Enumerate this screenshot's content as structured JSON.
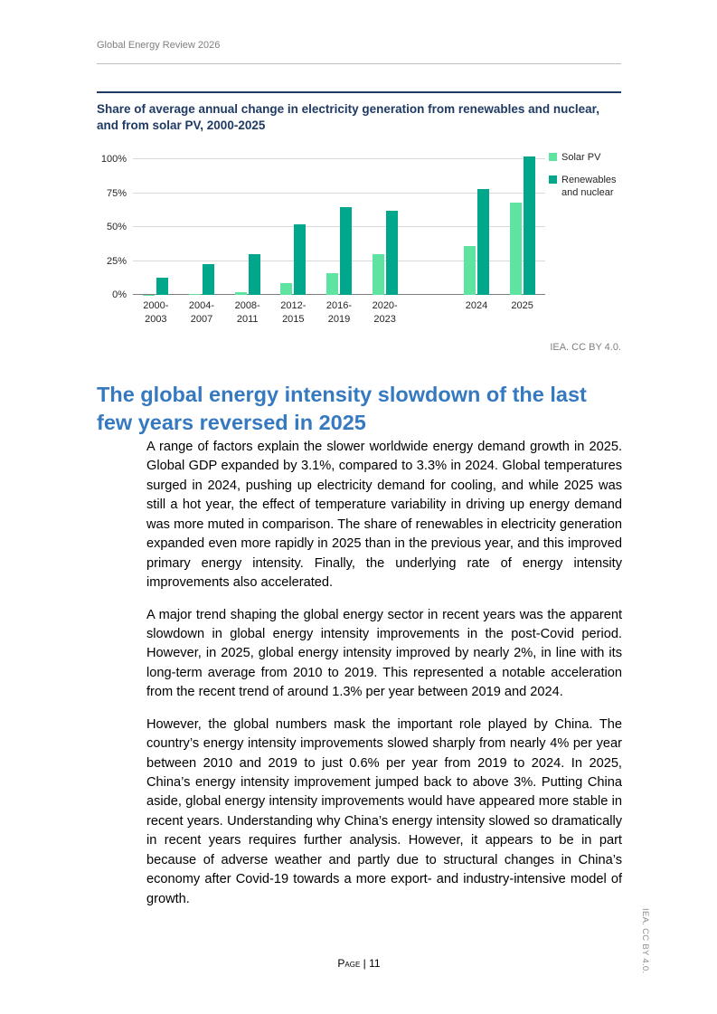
{
  "page": {
    "header": "Global Energy Review 2026",
    "footer_label": "Page | 11",
    "side_note": "IEA. CC BY 4.0."
  },
  "figure": {
    "title": "Share of average annual change in electricity generation from renewables and nuclear, and from solar PV, 2000-2025",
    "source": "IEA. CC BY 4.0."
  },
  "chart_data": {
    "type": "bar",
    "categories": [
      "2000-2003",
      "2004-2007",
      "2008-2011",
      "2012-2015",
      "2016-2019",
      "2020-2023",
      "2024",
      "2025"
    ],
    "series": [
      {
        "name": "Solar PV",
        "color": "#5fe3a1",
        "values": [
          0.5,
          1,
          2,
          9,
          16,
          30,
          36,
          68
        ]
      },
      {
        "name": "Renewables and nuclear",
        "color": "#00a78b",
        "values": [
          13,
          23,
          30,
          52,
          65,
          62,
          78,
          102
        ]
      }
    ],
    "yticks": [
      0,
      25,
      50,
      75,
      100
    ],
    "ytick_suffix": "%",
    "ylim": [
      0,
      105
    ],
    "grid": true,
    "legend_position": "right",
    "x_slots": [
      0,
      1,
      2,
      3,
      4,
      5,
      7,
      8
    ],
    "n_slots": 9
  },
  "section": {
    "heading": "The global energy intensity slowdown of the last few years reversed in 2025",
    "paragraphs": [
      "A range of factors explain the slower worldwide energy demand growth in 2025. Global GDP expanded by 3.1%, compared to 3.3% in 2024. Global temperatures surged in 2024, pushing up electricity demand for cooling, and while 2025 was still a hot year, the effect of temperature variability in driving up energy demand was more muted in comparison. The share of renewables in electricity generation expanded even more rapidly in 2025 than in the previous year, and this improved primary energy intensity. Finally, the underlying rate of energy intensity improvements also accelerated.",
      "A major trend shaping the global energy sector in recent years was the apparent slowdown in global energy intensity improvements in the post-Covid period. However, in 2025, global energy intensity improved by nearly 2%, in line with its long-term average from 2010 to 2019. This represented a notable acceleration from the recent trend of around 1.3% per year between 2019 and 2024.",
      "However, the global numbers mask the important role played by China. The country’s energy intensity improvements slowed sharply from nearly 4% per year between 2010 and 2019 to just 0.6% per year from 2019 to 2024. In 2025, China’s energy intensity improvement jumped back to above 3%. Putting China aside, global energy intensity improvements would have appeared more stable in recent years. Understanding why China’s energy intensity slowed so dramatically in recent years requires further analysis. However, it appears to be in part because of adverse weather and partly due to structural changes in China’s economy after Covid-19 towards a more export- and industry-intensive model of growth."
    ]
  }
}
